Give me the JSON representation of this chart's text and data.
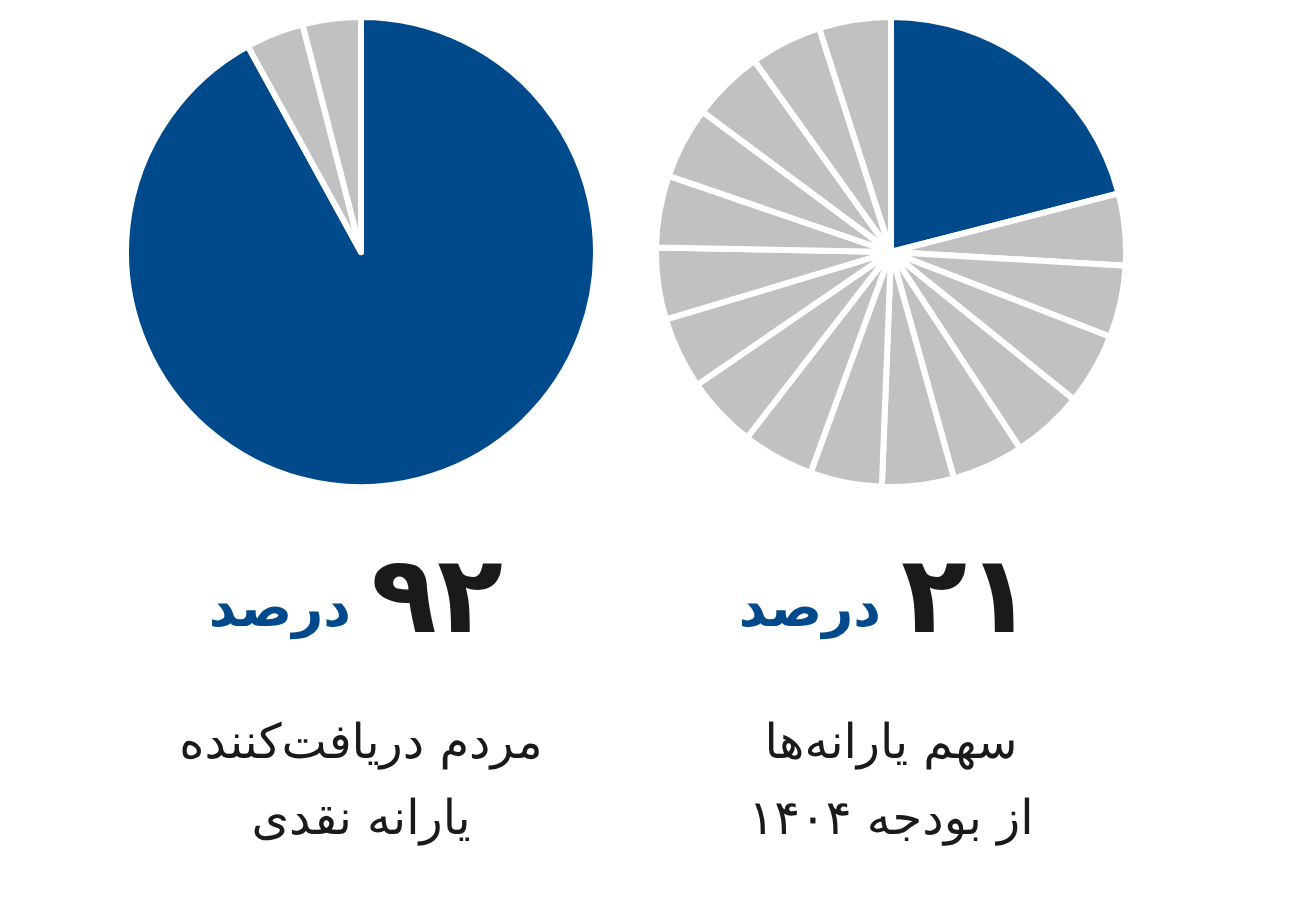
{
  "chart_data": [
    {
      "type": "pie",
      "title": "مردم دریافت‌کننده یارانه نقدی",
      "categories": [
        null,
        null,
        null
      ],
      "values": [
        92,
        4,
        4
      ],
      "colors": [
        "#004a8c",
        "#c1c1c1",
        "#c1c1c1"
      ],
      "annotations": [
        "۹۲",
        "درصد"
      ]
    },
    {
      "type": "pie",
      "title": "سهم یارانه‌ها از بودجه ۱۴۰۴",
      "categories": [
        null,
        null,
        null,
        null,
        null,
        null,
        null,
        null,
        null,
        null,
        null,
        null,
        null,
        null,
        null,
        null,
        null
      ],
      "values": [
        21,
        4.94,
        4.94,
        4.94,
        4.94,
        4.94,
        4.94,
        4.94,
        4.94,
        4.94,
        4.94,
        4.94,
        4.94,
        4.94,
        4.94,
        4.94,
        4.94
      ],
      "colors": [
        "#004a8c",
        "#c1c1c1",
        "#c1c1c1",
        "#c1c1c1",
        "#c1c1c1",
        "#c1c1c1",
        "#c1c1c1",
        "#c1c1c1",
        "#c1c1c1",
        "#c1c1c1",
        "#c1c1c1",
        "#c1c1c1",
        "#c1c1c1",
        "#c1c1c1",
        "#c1c1c1",
        "#c1c1c1",
        "#c1c1c1"
      ],
      "annotations": [
        "۲۱",
        "درصد"
      ]
    }
  ]
}
